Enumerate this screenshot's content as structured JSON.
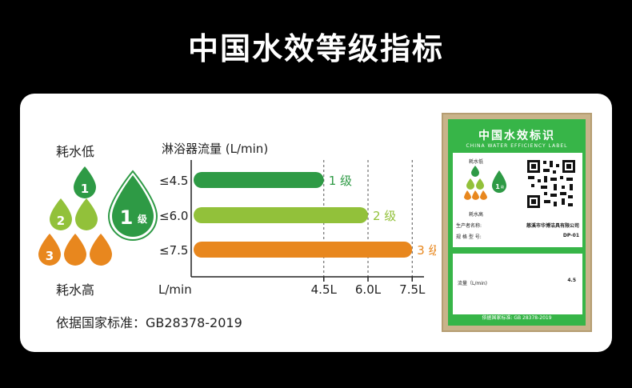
{
  "header": {
    "title": "中国水效等级指标"
  },
  "legend": {
    "low_use": "耗水低",
    "high_use": "耗水高",
    "big_drop": "1",
    "big_drop_suffix": "级",
    "drops": [
      "1",
      "2",
      "2",
      "3",
      "3",
      "3"
    ]
  },
  "standard": {
    "text": "依据国家标准：GB28378-2019"
  },
  "chart_data": {
    "type": "bar",
    "title": "淋浴器流量 (L/min)",
    "xlabel": "L/min",
    "categories": [
      "≤4.5",
      "≤6.0",
      "≤7.5"
    ],
    "values": [
      4.5,
      6.0,
      7.5
    ],
    "bar_labels": [
      "1 级",
      "2 级",
      "3 级"
    ],
    "x_ticks": [
      "4.5L",
      "6.0L",
      "7.5L"
    ],
    "tick_values": [
      4.5,
      6.0,
      7.5
    ],
    "xlim": [
      0,
      7.9
    ],
    "colors": [
      "#2e9a45",
      "#92c13a",
      "#e8871e"
    ],
    "grid": "dashed vertical"
  },
  "label_card": {
    "title": "中国水效标识",
    "subtitle": "CHINA WATER EFFICIENCY LABEL",
    "low_use": "耗水低",
    "high_use": "耗水高",
    "grade": "1",
    "grade_suffix": "级",
    "producer_label": "生产者名称:",
    "producer_value": "慈溪市华博洁具有限公司",
    "model_label": "规 格 型 号:",
    "model_value": "DP-01",
    "flow_label": "流量（L/min)",
    "flow_value": "4.5",
    "footer": "依据国家标准:  GB 28378-2019"
  }
}
